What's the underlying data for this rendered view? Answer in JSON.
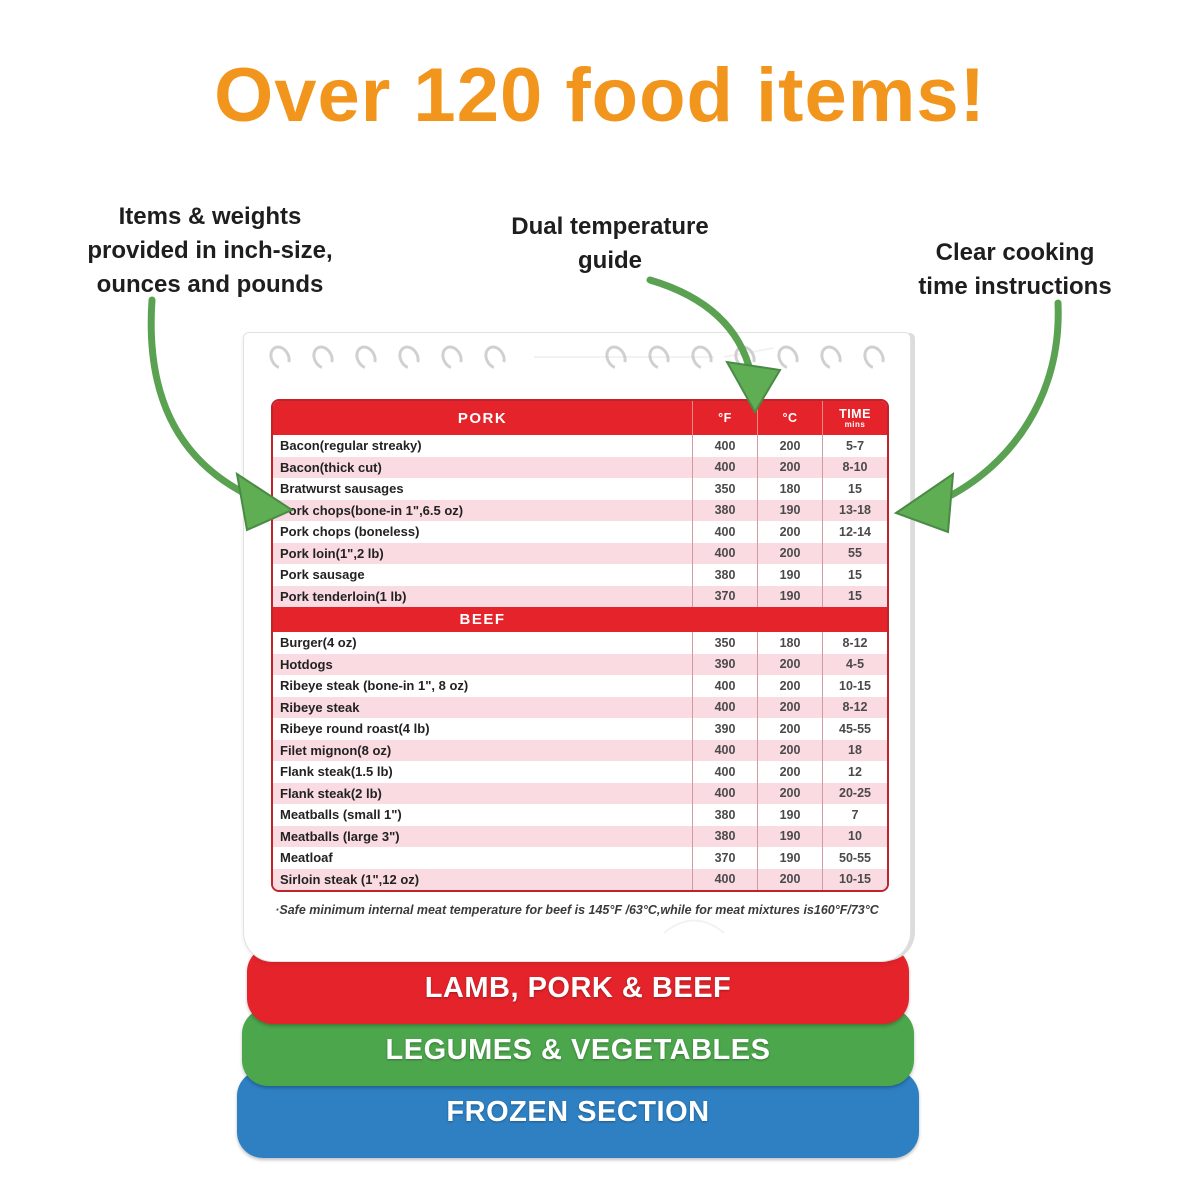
{
  "headline": {
    "text": "Over 120 food items!",
    "color": "#F2951D"
  },
  "annotations": {
    "left": [
      "Items & weights",
      "provided in inch-size,",
      "ounces and pounds"
    ],
    "center": [
      "Dual temperature",
      "guide"
    ],
    "right": [
      "Clear cooking",
      "time instructions"
    ]
  },
  "arrow_color": "#5AA252",
  "arrow_head_color": "#5FAE54",
  "table": {
    "columns": [
      "°F",
      "°C",
      "TIME"
    ],
    "time_unit": "mins",
    "header_color": "#E4232B",
    "row_stripe_color": "#FADBE2",
    "sections": [
      {
        "name": "PORK",
        "rows": [
          {
            "item": "Bacon(regular streaky)",
            "f": "400",
            "c": "200",
            "time": "5-7"
          },
          {
            "item": "Bacon(thick cut)",
            "f": "400",
            "c": "200",
            "time": "8-10"
          },
          {
            "item": "Bratwurst sausages",
            "f": "350",
            "c": "180",
            "time": "15"
          },
          {
            "item": "Pork chops(bone-in 1\",6.5 oz)",
            "f": "380",
            "c": "190",
            "time": "13-18"
          },
          {
            "item": "Pork chops (boneless)",
            "f": "400",
            "c": "200",
            "time": "12-14"
          },
          {
            "item": "Pork loin(1\",2 lb)",
            "f": "400",
            "c": "200",
            "time": "55"
          },
          {
            "item": "Pork sausage",
            "f": "380",
            "c": "190",
            "time": "15"
          },
          {
            "item": "Pork tenderloin(1 lb)",
            "f": "370",
            "c": "190",
            "time": "15"
          }
        ]
      },
      {
        "name": "BEEF",
        "rows": [
          {
            "item": "Burger(4 oz)",
            "f": "350",
            "c": "180",
            "time": "8-12"
          },
          {
            "item": "Hotdogs",
            "f": "390",
            "c": "200",
            "time": "4-5"
          },
          {
            "item": "Ribeye steak (bone-in 1\", 8 oz)",
            "f": "400",
            "c": "200",
            "time": "10-15"
          },
          {
            "item": "Ribeye steak",
            "f": "400",
            "c": "200",
            "time": "8-12"
          },
          {
            "item": "Ribeye round roast(4 lb)",
            "f": "390",
            "c": "200",
            "time": "45-55"
          },
          {
            "item": "Filet mignon(8 oz)",
            "f": "400",
            "c": "200",
            "time": "18"
          },
          {
            "item": "Flank steak(1.5 lb)",
            "f": "400",
            "c": "200",
            "time": "12"
          },
          {
            "item": "Flank steak(2 lb)",
            "f": "400",
            "c": "200",
            "time": "20-25"
          },
          {
            "item": "Meatballs (small 1\")",
            "f": "380",
            "c": "190",
            "time": "7"
          },
          {
            "item": "Meatballs (large 3\")",
            "f": "380",
            "c": "190",
            "time": "10"
          },
          {
            "item": "Meatloaf",
            "f": "370",
            "c": "190",
            "time": "50-55"
          },
          {
            "item": "Sirloin steak (1\",12 oz)",
            "f": "400",
            "c": "200",
            "time": "10-15"
          }
        ]
      }
    ],
    "footnote": "·Safe minimum internal meat temperature for beef is 145°F /63°C,while for meat mixtures is160°F/73°C"
  },
  "tabs": [
    {
      "label": "LAMB, PORK & BEEF",
      "color": "#E4232B"
    },
    {
      "label": "LEGUMES & VEGETABLES",
      "color": "#4CA64C"
    },
    {
      "label": "FROZEN SECTION",
      "color": "#2E80C3"
    }
  ]
}
